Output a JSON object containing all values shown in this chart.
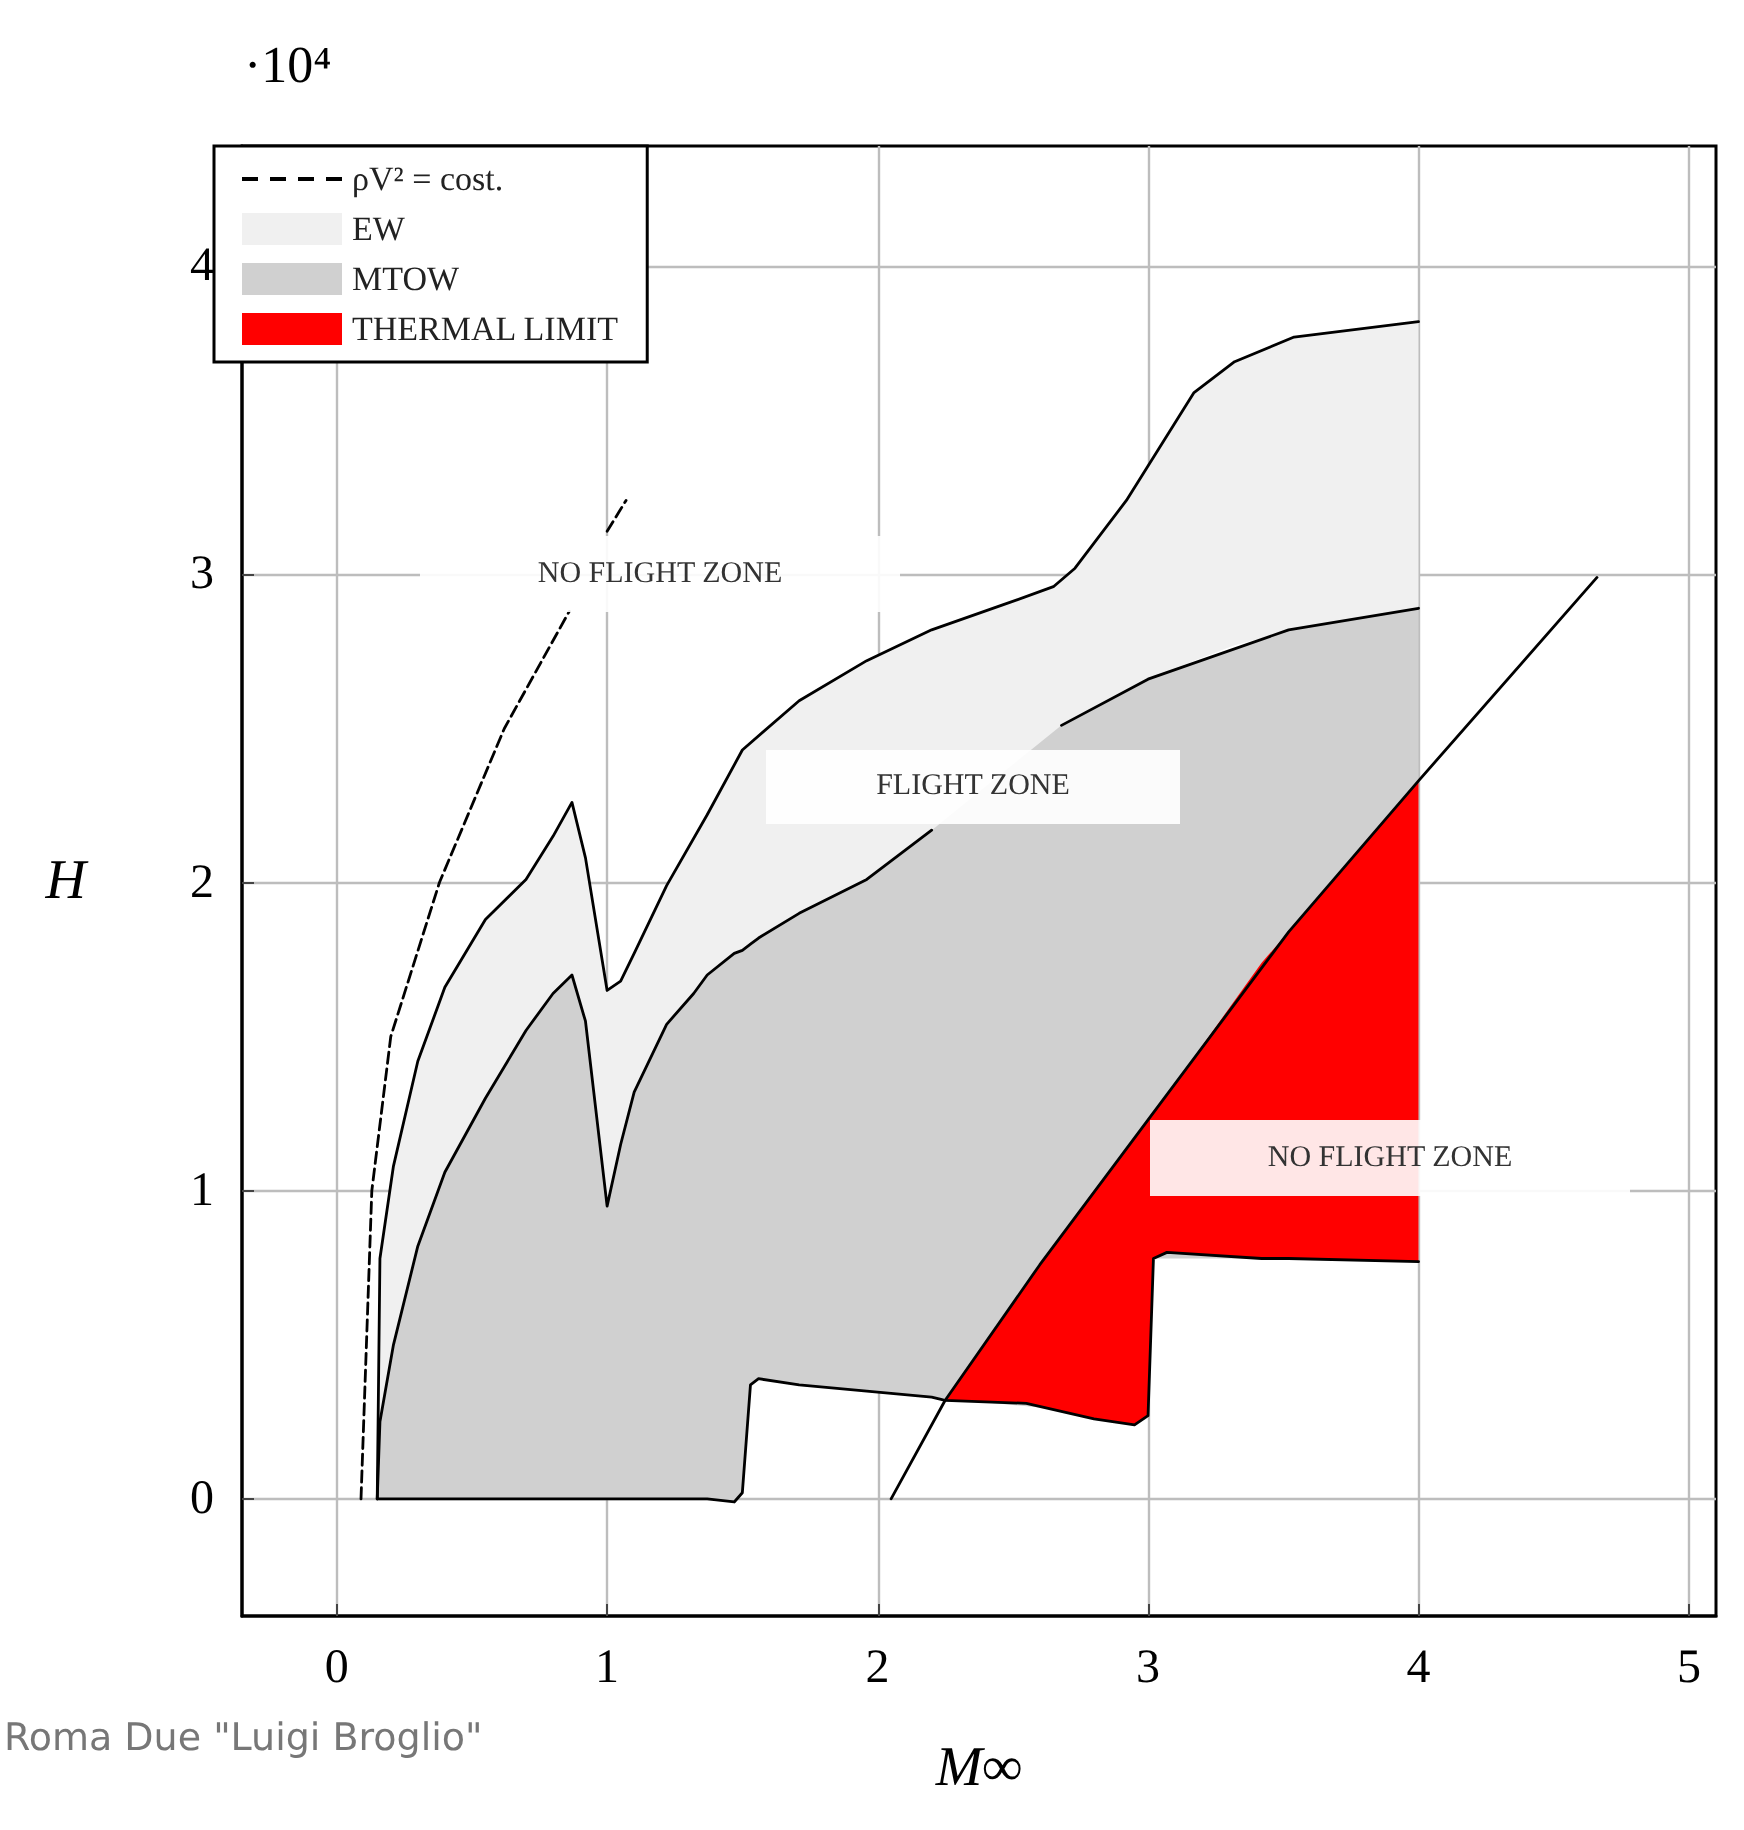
{
  "chart_data": {
    "type": "line",
    "xlabel": "M∞",
    "ylabel": "H",
    "xlim": [
      -0.35,
      5.1
    ],
    "ylim": [
      -0.38,
      4.39
    ],
    "xticks": [
      0,
      1,
      2,
      3,
      4,
      5
    ],
    "yticks": [
      0,
      1,
      2,
      3,
      4
    ],
    "grid": true,
    "legend": "top left",
    "marker": "none",
    "annotations": [
      "·10⁴",
      "Roma Due \"Luigi Broglio\"",
      "NO FLIGHT ZONE",
      "FLIGHT ZONE",
      "NO FLIGHT ZONE"
    ],
    "series": [
      {
        "name": "ρV² = cost.",
        "line_style": "dashed",
        "color": "#000000",
        "x": [
          0.09,
          0.11,
          0.13,
          0.2,
          0.38,
          0.62,
          0.86,
          0.9,
          1.0,
          1.07
        ],
        "values": [
          0,
          0.5,
          1.0,
          1.5,
          2.0,
          2.5,
          2.88,
          null,
          3.14,
          3.24
        ]
      },
      {
        "name": "EW",
        "color": "#f0f0f0",
        "x": [
          0.15,
          0.16,
          0.21,
          0.3,
          0.4,
          0.55,
          0.7,
          0.8,
          0.87,
          0.92,
          1.0,
          1.05,
          1.1,
          1.22,
          1.37,
          1.5,
          1.71,
          1.96,
          2.2,
          2.46,
          2.65,
          2.73,
          2.92,
          3.17,
          3.32,
          3.54,
          4.0
        ],
        "values": [
          null,
          null,
          null,
          null,
          null,
          null,
          null,
          null,
          null,
          null,
          null,
          null,
          null,
          null,
          null,
          null,
          null,
          null,
          null,
          null,
          null,
          null,
          null,
          null,
          null,
          null,
          null
        ],
        "upper": [
          0.0,
          0.78,
          1.08,
          1.42,
          1.66,
          1.88,
          2.01,
          2.15,
          2.26,
          2.08,
          1.65,
          1.68,
          1.77,
          1.99,
          2.22,
          2.43,
          2.59,
          2.72,
          2.82,
          null,
          2.96,
          3.02,
          3.24,
          3.59,
          3.69,
          3.77,
          3.82
        ],
        "lower": [
          0.0,
          0.25,
          0.5,
          0.82,
          1.06,
          1.3,
          1.52,
          1.64,
          1.7,
          1.55,
          0.95,
          1.15,
          1.32,
          1.54,
          1.7,
          1.78,
          1.9,
          2.01,
          2.17,
          null,
          2.47,
          2.52,
          2.62,
          2.72,
          2.77,
          2.82,
          2.89
        ]
      },
      {
        "name": "MTOW",
        "color": "#d0d0d0",
        "x": [
          0.15,
          0.16,
          0.21,
          0.3,
          0.4,
          0.55,
          0.7,
          0.8,
          0.87,
          0.92,
          1.0,
          1.05,
          1.1,
          1.22,
          1.32,
          1.37,
          1.47,
          1.5,
          1.53,
          1.56,
          1.71,
          1.96,
          2.2,
          2.25,
          2.46,
          2.68,
          3.0,
          3.02,
          3.52,
          4.0
        ],
        "values": [
          null,
          null,
          null,
          null,
          null,
          null,
          null,
          null,
          null,
          null,
          null,
          null,
          null,
          null,
          null,
          null,
          null,
          null,
          null,
          null,
          null,
          null,
          null,
          null,
          null,
          null,
          null,
          null,
          null,
          null
        ],
        "upper": [
          0.0,
          0.25,
          0.5,
          0.82,
          1.06,
          1.3,
          1.52,
          1.64,
          1.7,
          1.55,
          0.95,
          1.15,
          1.32,
          1.54,
          1.64,
          1.7,
          1.77,
          1.78,
          1.8,
          1.82,
          1.9,
          2.01,
          2.17,
          null,
          null,
          2.51,
          2.66,
          2.67,
          2.82,
          2.89
        ],
        "lower": [
          0,
          0,
          0,
          0,
          0,
          0,
          0,
          0,
          0,
          0,
          0,
          0,
          0,
          0,
          0,
          0,
          -0.01,
          0.02,
          0.37,
          0.39,
          0.37,
          0.35,
          0.33,
          null,
          null,
          0.29,
          0.27,
          0.78,
          0.78,
          0.77
        ]
      },
      {
        "name": "THERMAL LIMIT",
        "color": "#ff0000",
        "x": [
          2.25,
          2.55,
          2.8,
          2.95,
          3.0,
          3.02,
          3.07,
          3.42,
          3.52,
          4.0
        ],
        "values": [
          null,
          null,
          null,
          null,
          null,
          null,
          null,
          null,
          null,
          null
        ],
        "upper": [
          0.32,
          0.7,
          1.0,
          1.17,
          1.23,
          1.25,
          1.31,
          1.74,
          1.84,
          2.33
        ],
        "lower": [
          0.32,
          0.31,
          0.26,
          0.24,
          0.27,
          0.78,
          0.8,
          0.78,
          0.78,
          0.77
        ]
      },
      {
        "color": "#000000",
        "x": [
          0.15,
          0.16,
          0.21,
          0.3,
          0.4,
          0.55,
          0.7,
          0.8,
          0.87,
          0.92,
          1.0,
          1.05,
          1.1,
          1.22,
          1.37,
          1.5,
          1.71,
          1.96,
          2.2,
          2.46,
          2.65,
          2.73,
          2.92,
          3.17,
          3.32,
          3.54,
          4.0
        ],
        "values": [
          0.0,
          0.78,
          1.08,
          1.42,
          1.66,
          1.88,
          2.01,
          2.15,
          2.26,
          2.08,
          1.65,
          1.68,
          1.77,
          1.99,
          2.22,
          2.43,
          2.59,
          2.72,
          2.82,
          2.9,
          2.96,
          3.02,
          3.24,
          3.59,
          3.69,
          3.77,
          3.82
        ]
      },
      {
        "color": "#000000",
        "x": [
          0.15,
          0.16,
          0.21,
          0.3,
          0.4,
          0.55,
          0.7,
          0.8,
          0.87,
          0.92,
          1.0,
          1.05,
          1.1,
          1.22,
          1.32,
          1.37,
          1.47,
          1.5,
          1.53,
          1.56,
          1.71,
          1.96,
          2.2,
          2.25,
          2.46,
          2.68,
          3.0,
          3.52,
          4.0
        ],
        "values": [
          0.0,
          0.25,
          0.5,
          0.82,
          1.06,
          1.3,
          1.52,
          1.64,
          1.7,
          1.55,
          0.95,
          1.15,
          1.32,
          1.54,
          1.64,
          1.7,
          1.77,
          1.78,
          1.8,
          1.82,
          1.9,
          2.01,
          2.17,
          null,
          null,
          2.51,
          2.66,
          2.82,
          2.89
        ]
      },
      {
        "color": "#000000",
        "x": [
          0.15,
          1.37,
          1.47,
          1.5,
          1.53,
          1.56,
          1.71,
          1.96,
          2.2,
          2.25,
          2.55,
          2.8,
          2.95,
          3.0,
          3.02,
          3.07,
          3.42,
          3.52,
          4.0
        ],
        "values": [
          0,
          0,
          -0.01,
          0.02,
          0.37,
          0.39,
          0.37,
          0.35,
          0.33,
          0.32,
          0.31,
          0.26,
          0.24,
          0.27,
          0.78,
          0.8,
          0.78,
          0.78,
          0.77
        ]
      },
      {
        "color": "#000000",
        "x": [
          2.05,
          2.25,
          2.6,
          3.0,
          3.52,
          4.0,
          4.66
        ],
        "values": [
          0,
          0.32,
          0.76,
          1.23,
          1.84,
          2.33,
          2.99
        ]
      }
    ]
  }
}
